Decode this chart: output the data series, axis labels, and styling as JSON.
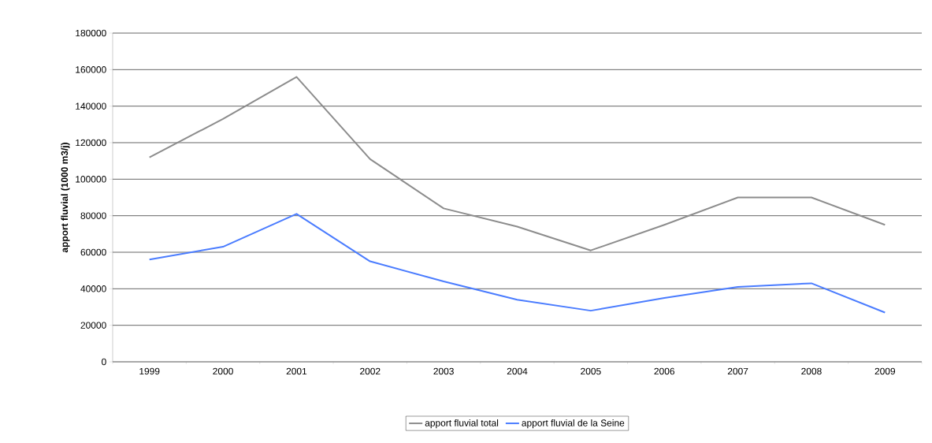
{
  "chart_data": {
    "type": "line",
    "ylabel": "apport fluvial (1000 m3/j)",
    "categories": [
      "1999",
      "2000",
      "2001",
      "2002",
      "2003",
      "2004",
      "2005",
      "2006",
      "2007",
      "2008",
      "2009"
    ],
    "series": [
      {
        "name": "apport fluvial total",
        "color": "#8c8c8c",
        "values": [
          112000,
          133000,
          156000,
          111000,
          84000,
          74000,
          61000,
          75000,
          90000,
          90000,
          75000
        ]
      },
      {
        "name": "apport fluvial de la Seine",
        "color": "#4a7cff",
        "values": [
          56000,
          63000,
          81000,
          55000,
          44000,
          34000,
          28000,
          35000,
          41000,
          43000,
          27000
        ]
      }
    ],
    "ylim": [
      0,
      180000
    ],
    "yticks": [
      0,
      20000,
      40000,
      60000,
      80000,
      100000,
      120000,
      140000,
      160000,
      180000
    ],
    "grid": "y",
    "legend": "bottom",
    "marker": "none",
    "line_style": "solid"
  }
}
